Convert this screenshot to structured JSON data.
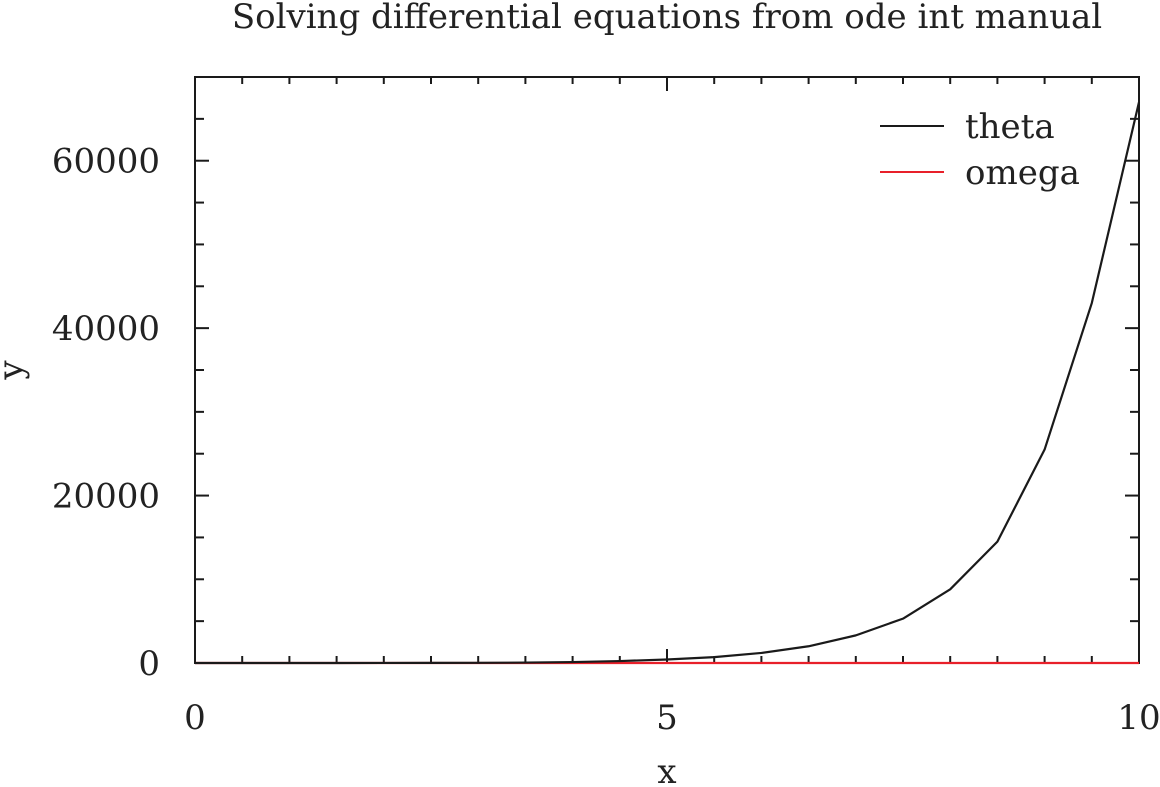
{
  "chart_data": {
    "type": "line",
    "title": "Solving differential equations from ode int manual",
    "xlabel": "x",
    "ylabel": "y",
    "xlim": [
      0,
      10
    ],
    "ylim": [
      0,
      70000
    ],
    "xticks": [
      0,
      5,
      10
    ],
    "xtick_labels": [
      "0",
      "5",
      "10"
    ],
    "yticks": [
      0,
      20000,
      40000,
      60000
    ],
    "ytick_labels": [
      "0",
      "20000",
      "40000",
      "60000"
    ],
    "x_minor_step": 0.5,
    "y_minor_step": 5000,
    "grid": false,
    "legend_position": "top-right",
    "x": [
      0,
      0.5,
      1,
      1.5,
      2,
      2.5,
      3,
      3.5,
      4,
      4.5,
      5,
      5.5,
      6,
      6.5,
      7,
      7.5,
      8,
      8.5,
      9,
      9.5,
      10
    ],
    "series": [
      {
        "name": "theta",
        "color": "#1a1a1a",
        "values": [
          0,
          0,
          1,
          2,
          5,
          12,
          20,
          50,
          110,
          230,
          420,
          700,
          1200,
          2000,
          3300,
          5300,
          8800,
          14500,
          25500,
          43000,
          67000
        ]
      },
      {
        "name": "omega",
        "color": "#e8202a",
        "values": [
          0,
          0,
          0,
          0,
          0,
          0,
          0,
          0,
          0,
          0,
          0,
          0,
          0,
          0,
          0,
          0,
          0,
          0,
          0,
          0,
          0
        ]
      }
    ]
  }
}
